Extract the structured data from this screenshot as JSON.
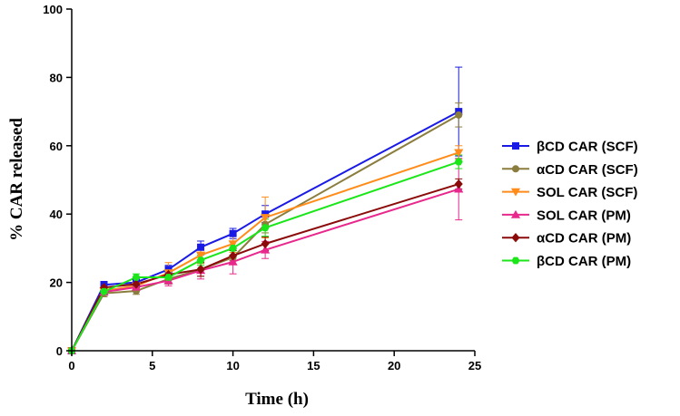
{
  "chart_data": {
    "type": "line",
    "title": "",
    "xlabel": "Time (h)",
    "ylabel": "% CAR released",
    "xlim": [
      0,
      25
    ],
    "ylim": [
      0,
      100
    ],
    "xticks": [
      0,
      5,
      10,
      15,
      20,
      25
    ],
    "yticks": [
      0,
      20,
      40,
      60,
      80,
      100
    ],
    "x": [
      0,
      2,
      4,
      6,
      8,
      10,
      12,
      24
    ],
    "grid": false,
    "legend_position": "right",
    "series": [
      {
        "name": "βCD CAR (SCF)",
        "color": "#1a1ae6",
        "marker": "square",
        "values": [
          0,
          19.3,
          20.0,
          23.8,
          30.3,
          34.3,
          40.0,
          70.0
        ],
        "errors": [
          0,
          1.0,
          1.0,
          1.2,
          1.8,
          1.5,
          2.5,
          13.0
        ]
      },
      {
        "name": "αCD CAR (SCF)",
        "color": "#8b7d3e",
        "marker": "circle",
        "values": [
          0,
          16.8,
          17.5,
          21.0,
          23.8,
          27.3,
          37.0,
          69.0
        ],
        "errors": [
          0,
          1.0,
          1.0,
          1.5,
          2.0,
          2.0,
          2.5,
          3.5
        ]
      },
      {
        "name": "SOL CAR (SCF)",
        "color": "#ff8c1a",
        "marker": "triangle-down",
        "values": [
          0,
          17.5,
          19.0,
          22.8,
          28.0,
          31.3,
          39.0,
          58.0
        ],
        "errors": [
          0,
          1.0,
          1.0,
          3.0,
          2.5,
          2.5,
          6.0,
          2.0
        ]
      },
      {
        "name": "SOL CAR (PM)",
        "color": "#e8288c",
        "marker": "triangle-up",
        "values": [
          0,
          17.2,
          18.6,
          20.5,
          23.5,
          26.0,
          29.5,
          47.3
        ],
        "errors": [
          0,
          1.0,
          1.0,
          1.5,
          2.5,
          3.5,
          2.5,
          9.0
        ]
      },
      {
        "name": "αCD CAR (PM)",
        "color": "#8b0a0a",
        "marker": "diamond",
        "values": [
          0,
          18.5,
          19.5,
          22.3,
          23.8,
          27.8,
          31.3,
          48.8
        ],
        "errors": [
          0,
          1.0,
          1.0,
          1.2,
          2.0,
          1.5,
          2.0,
          1.5
        ]
      },
      {
        "name": "βCD CAR (PM)",
        "color": "#1ae61a",
        "marker": "hexagon",
        "values": [
          0,
          17.3,
          21.5,
          21.5,
          26.5,
          30.0,
          36.0,
          55.3
        ],
        "errors": [
          0,
          1.0,
          1.0,
          1.5,
          1.5,
          2.0,
          2.5,
          2.0
        ]
      }
    ]
  }
}
